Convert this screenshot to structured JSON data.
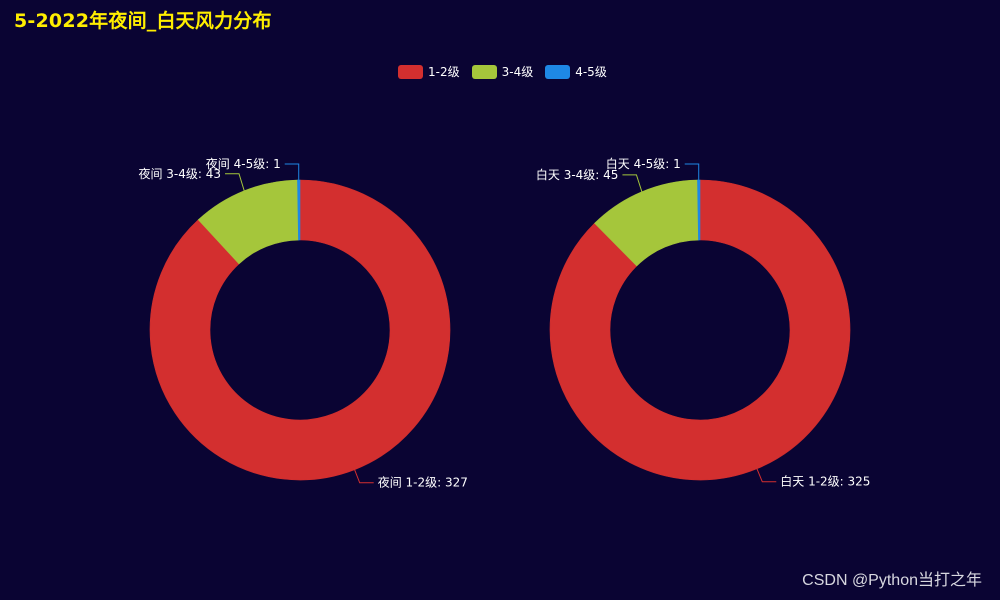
{
  "title": "5-2022年夜间_白天风力分布",
  "watermark": "CSDN @Python当打之年",
  "chart_data": {
    "type": "pie",
    "legend_position": "top-center",
    "legend": [
      {
        "name": "1-2级",
        "color": "#d32f2f"
      },
      {
        "name": "3-4级",
        "color": "#a5c63b"
      },
      {
        "name": "4-5级",
        "color": "#1e88e5"
      }
    ],
    "charts": [
      {
        "slices": [
          {
            "label": "夜间 1-2级: 327",
            "category": "1-2级",
            "value": 327
          },
          {
            "label": "夜间 3-4级: 43",
            "category": "3-4级",
            "value": 43
          },
          {
            "label": "夜间 4-5级: 1",
            "category": "4-5级",
            "value": 1
          }
        ]
      },
      {
        "slices": [
          {
            "label": "白天 1-2级: 325",
            "category": "1-2级",
            "value": 325
          },
          {
            "label": "白天 3-4级: 45",
            "category": "3-4级",
            "value": 45
          },
          {
            "label": "白天 4-5级: 1",
            "category": "4-5级",
            "value": 1
          }
        ]
      }
    ]
  }
}
